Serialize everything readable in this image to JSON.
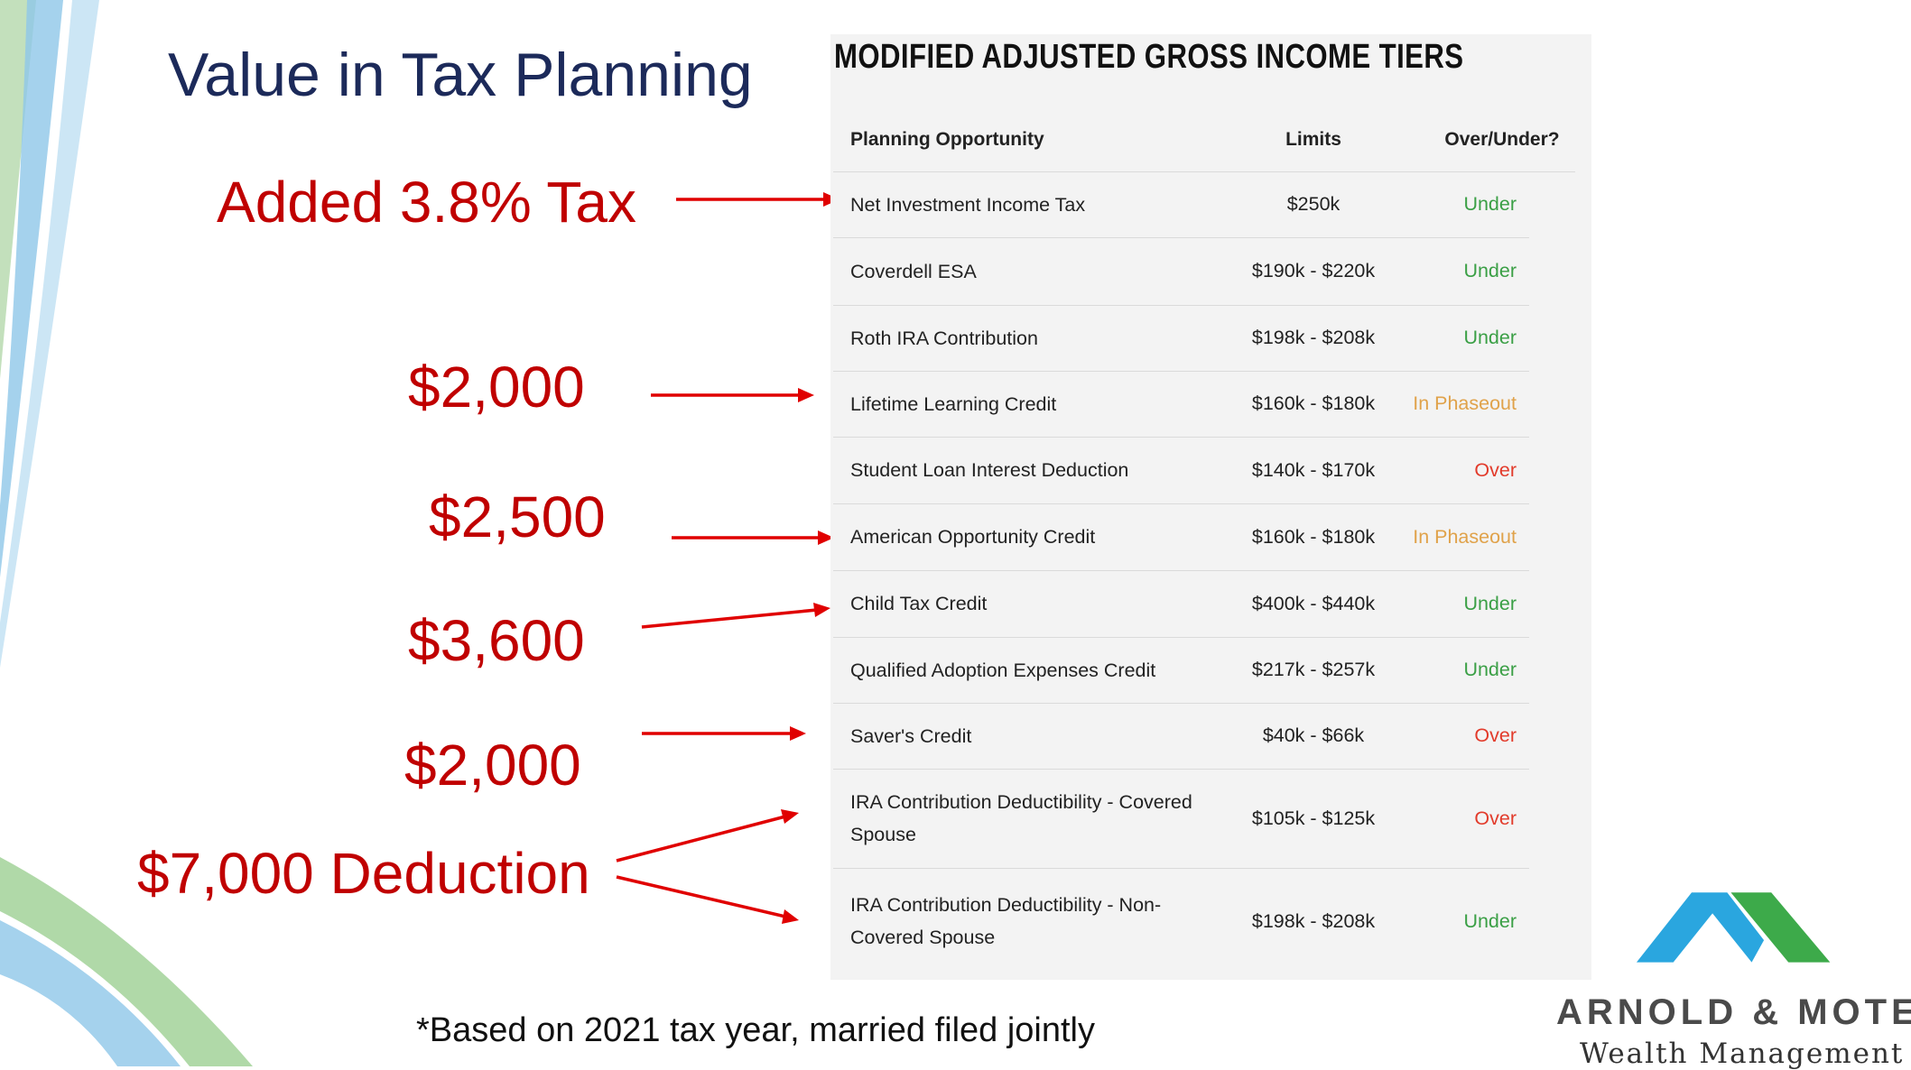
{
  "title": "Value in Tax Planning",
  "annotations": [
    "Added 3.8% Tax",
    "$2,000",
    "$2,500",
    "$3,600",
    "$2,000",
    "$7,000 Deduction"
  ],
  "table": {
    "title": "MODIFIED ADJUSTED GROSS INCOME TIERS",
    "headers": [
      "Planning Opportunity",
      "Limits",
      "Over/Under?"
    ],
    "rows": [
      [
        "Net Investment Income Tax",
        "$250k",
        "Under"
      ],
      [
        "Coverdell ESA",
        "$190k - $220k",
        "Under"
      ],
      [
        "Roth IRA Contribution",
        "$198k - $208k",
        "Under"
      ],
      [
        "Lifetime Learning Credit",
        "$160k - $180k",
        "In Phaseout"
      ],
      [
        "Student Loan Interest Deduction",
        "$140k - $170k",
        "Over"
      ],
      [
        "American Opportunity Credit",
        "$160k - $180k",
        "In Phaseout"
      ],
      [
        "Child Tax Credit",
        "$400k - $440k",
        "Under"
      ],
      [
        "Qualified Adoption Expenses Credit",
        "$217k - $257k",
        "Under"
      ],
      [
        "Saver's Credit",
        "$40k - $66k",
        "Over"
      ],
      [
        "IRA Contribution Deductibility - Covered Spouse",
        "$105k - $125k",
        "Over"
      ],
      [
        "IRA Contribution Deductibility - Non-Covered Spouse",
        "$198k - $208k",
        "Under"
      ]
    ],
    "status_colors": [
      "#3a9f45",
      "#3a9f45",
      "#3a9f45",
      "#e0a24a",
      "#e23b2b",
      "#e0a24a",
      "#3a9f45",
      "#3a9f45",
      "#e23b2b",
      "#e23b2b",
      "#3a9f45"
    ]
  },
  "footnote": "*Based on 2021 tax year, married filed jointly",
  "logo": {
    "name": "ARNOLD & MOTE",
    "tagline": "Wealth Management"
  }
}
